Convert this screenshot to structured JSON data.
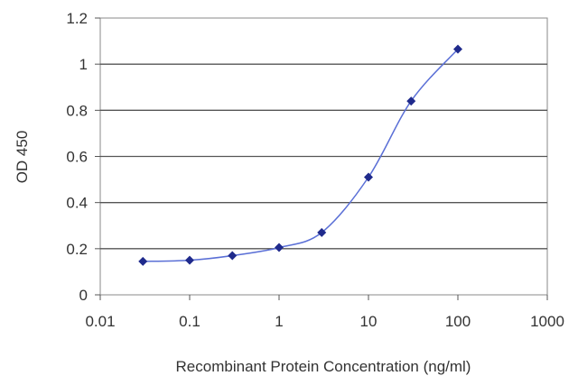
{
  "chart_data": {
    "type": "scatter",
    "title": "",
    "xlabel": "Recombinant Protein Concentration (ng/ml)",
    "ylabel": "OD 450",
    "x_scale": "log",
    "xlim": [
      0.01,
      1000
    ],
    "ylim": [
      0,
      1.2
    ],
    "x_ticks": [
      0.01,
      0.1,
      1,
      10,
      100,
      1000
    ],
    "x_tick_labels": [
      "0.01",
      "0.1",
      "1",
      "10",
      "100",
      "1000"
    ],
    "y_ticks": [
      0,
      0.2,
      0.4,
      0.6,
      0.8,
      1,
      1.2
    ],
    "y_tick_labels": [
      "0",
      "0.2",
      "0.4",
      "0.6",
      "0.8",
      "1",
      "1.2"
    ],
    "grid": "horizontal",
    "legend": "none",
    "series": [
      {
        "x": [
          0.03,
          0.1,
          0.3,
          1,
          3,
          10,
          30,
          100
        ],
        "y": [
          0.145,
          0.15,
          0.17,
          0.205,
          0.27,
          0.51,
          0.84,
          1.065
        ],
        "color": "#1f2a8c",
        "marker": "diamond",
        "fit_line": true
      }
    ]
  }
}
